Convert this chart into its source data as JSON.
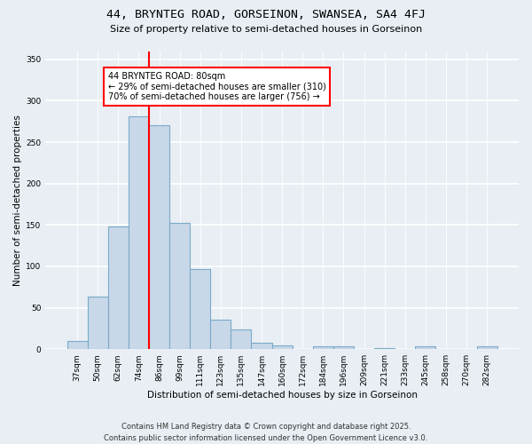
{
  "title1": "44, BRYNTEG ROAD, GORSEINON, SWANSEA, SA4 4FJ",
  "title2": "Size of property relative to semi-detached houses in Gorseinon",
  "xlabel": "Distribution of semi-detached houses by size in Gorseinon",
  "ylabel": "Number of semi-detached properties",
  "categories": [
    "37sqm",
    "50sqm",
    "62sqm",
    "74sqm",
    "86sqm",
    "99sqm",
    "111sqm",
    "123sqm",
    "135sqm",
    "147sqm",
    "160sqm",
    "172sqm",
    "184sqm",
    "196sqm",
    "209sqm",
    "221sqm",
    "233sqm",
    "245sqm",
    "258sqm",
    "270sqm",
    "282sqm"
  ],
  "values": [
    10,
    63,
    148,
    281,
    270,
    152,
    97,
    36,
    24,
    8,
    5,
    0,
    3,
    3,
    0,
    1,
    0,
    3,
    0,
    0,
    3
  ],
  "bar_color": "#c8d8e8",
  "bar_edge_color": "#7aaac8",
  "vline_x": 3.5,
  "vline_color": "red",
  "annotation_text": "44 BRYNTEG ROAD: 80sqm\n← 29% of semi-detached houses are smaller (310)\n70% of semi-detached houses are larger (756) →",
  "annotation_box_color": "white",
  "annotation_box_edge_color": "red",
  "ylim": [
    0,
    360
  ],
  "yticks": [
    0,
    50,
    100,
    150,
    200,
    250,
    300,
    350
  ],
  "footer1": "Contains HM Land Registry data © Crown copyright and database right 2025.",
  "footer2": "Contains public sector information licensed under the Open Government Licence v3.0.",
  "bg_color": "#e8eef4",
  "plot_bg_color": "#e8eef4",
  "title1_fontsize": 9.5,
  "title2_fontsize": 8,
  "tick_fontsize": 6.5,
  "ylabel_fontsize": 7.5,
  "xlabel_fontsize": 7.5,
  "footer_fontsize": 6
}
